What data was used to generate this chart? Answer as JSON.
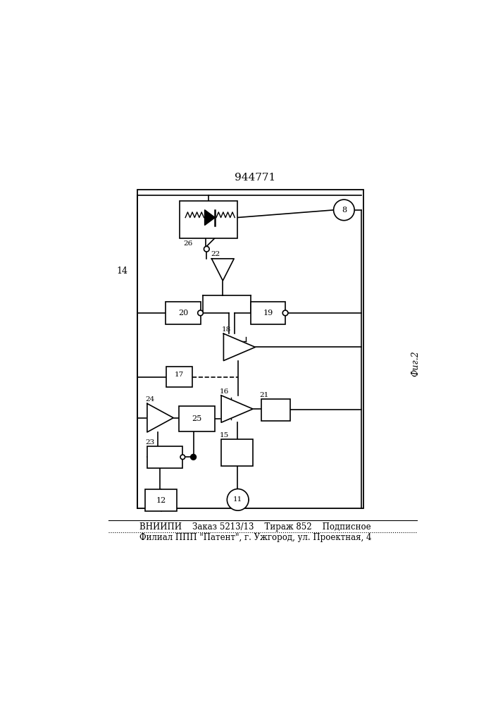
{
  "title": "944771",
  "fig_label": "Фиг.2",
  "border_label": "14",
  "footer_line1": "ВНИИПИ    Заказ 5213/13    Тираж 852    Подписное",
  "footer_line2": "Филиал ППП \"Патент\", г. Ужгород, ул. Проектная, 4",
  "bg_color": "#ffffff",
  "line_color": "#000000"
}
